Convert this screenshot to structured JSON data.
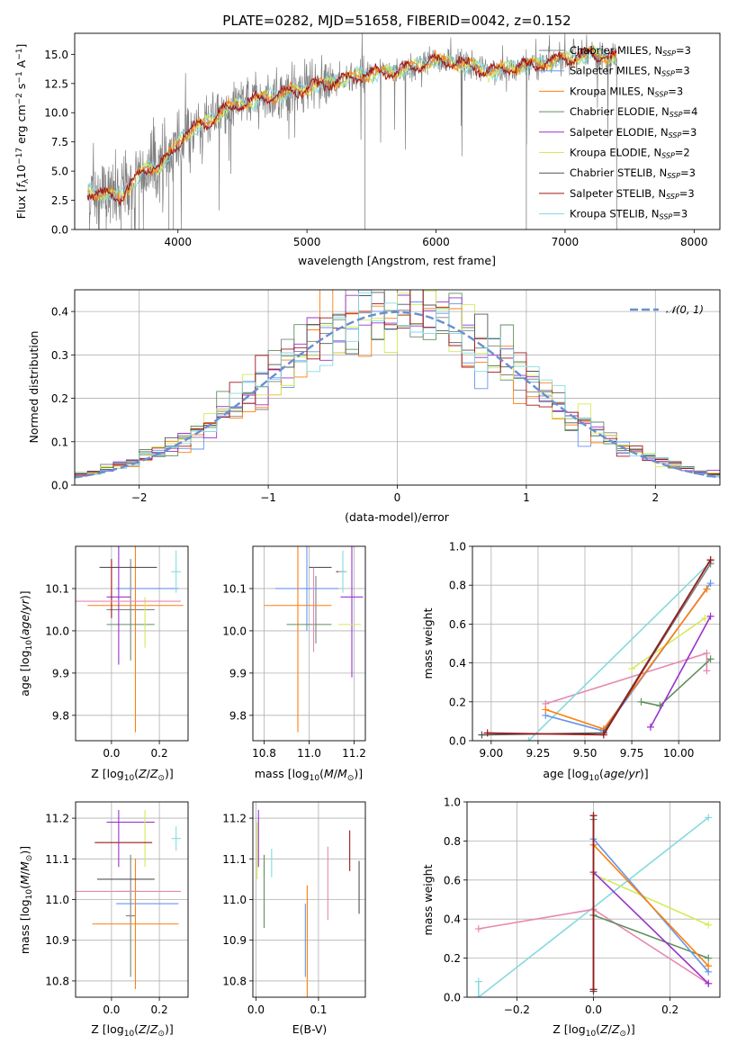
{
  "palette": {
    "Chabrier MILES": "#808080",
    "Salpeter MILES": "#6495ed",
    "Kroupa MILES": "#ff7f0e",
    "Chabrier ELODIE": "#5f8f5f",
    "Salpeter ELODIE": "#9932cc",
    "Kroupa ELODIE": "#d4ea58",
    "Chabrier STELIB": "#555555",
    "Salpeter STELIB": "#a01818",
    "Kroupa STELIB": "#86dae0",
    "Pink": "#e688b0",
    "Gauss": "#6a8fd0"
  },
  "chart_data": [
    {
      "id": "spectrum",
      "type": "line",
      "title": "PLATE=0282, MJD=51658, FIBERID=0042, z=0.152",
      "xlabel": "wavelength [Angstrom, rest frame]",
      "ylabel_parts": [
        "Flux [",
        "f",
        "λ",
        "10",
        "−17",
        " erg cm",
        "−2",
        " s",
        "−1",
        " A",
        "−1",
        "]"
      ],
      "xlim": [
        3200,
        8200
      ],
      "ylim": [
        0,
        16.8
      ],
      "xticks": [
        4000,
        5000,
        6000,
        7000,
        8000
      ],
      "yticks": [
        0.0,
        2.5,
        5.0,
        7.5,
        10.0,
        12.5,
        15.0
      ],
      "continuum": {
        "x": [
          3300,
          3450,
          3550,
          3650,
          3750,
          3850,
          3950,
          4050,
          4200,
          4350,
          4500,
          4650,
          4800,
          5000,
          5200,
          5400,
          5600,
          5800,
          6000,
          6200,
          6400,
          6600,
          6800,
          7000,
          7200,
          7400
        ],
        "y": [
          3.2,
          3.0,
          2.8,
          4.0,
          5.2,
          5.5,
          6.5,
          8.2,
          9.0,
          10.2,
          10.8,
          11.2,
          11.6,
          12.1,
          12.6,
          13.2,
          13.4,
          13.8,
          14.5,
          14.2,
          13.5,
          13.9,
          14.2,
          14.6,
          15.0,
          14.7
        ]
      },
      "legend": [
        {
          "name": "Chabrier MILES",
          "nssp": "3"
        },
        {
          "name": "Salpeter MILES",
          "nssp": "3"
        },
        {
          "name": "Kroupa MILES",
          "nssp": "3"
        },
        {
          "name": "Chabrier ELODIE",
          "nssp": "4"
        },
        {
          "name": "Salpeter ELODIE",
          "nssp": "3"
        },
        {
          "name": "Kroupa ELODIE",
          "nssp": "2"
        },
        {
          "name": "Chabrier STELIB",
          "nssp": "3"
        },
        {
          "name": "Salpeter STELIB",
          "nssp": "3"
        },
        {
          "name": "Kroupa STELIB",
          "nssp": "3"
        }
      ],
      "legend_sub": "SSP",
      "legend_prefix": "N"
    },
    {
      "id": "residuals",
      "type": "line",
      "xlabel": "(data-model)/error",
      "ylabel": "Normed distribution",
      "xlim": [
        -2.5,
        2.5
      ],
      "ylim": [
        0,
        0.45
      ],
      "xticks": [
        -2,
        -1,
        0,
        1,
        2
      ],
      "yticks": [
        0.0,
        0.1,
        0.2,
        0.3,
        0.4
      ],
      "grid": true,
      "legend_label": "𝒩(0, 1)",
      "legend_placement": "top-right",
      "bin_width": 0.1
    },
    {
      "id": "age-vs-Z",
      "type": "scatter",
      "xlabel": "Z [log10(Z/Z⊙)]",
      "ylabel": "age  [log10(age/yr)]",
      "xlim": [
        -0.15,
        0.32
      ],
      "ylim": [
        9.74,
        10.2
      ],
      "xticks": [
        0.0,
        0.2
      ],
      "yticks": [
        9.8,
        9.9,
        10.0,
        10.1
      ],
      "grid": true,
      "points": [
        {
          "s": "Chabrier MILES",
          "x": 0.08,
          "y": 10.05,
          "xe": 0.1,
          "ye": 0.12
        },
        {
          "s": "Salpeter MILES",
          "x": 0.15,
          "y": 10.1,
          "xe": 0.13,
          "ye": 0.0
        },
        {
          "s": "Kroupa MILES",
          "x": 0.1,
          "y": 10.06,
          "xe": 0.2,
          "ye": 0.3
        },
        {
          "s": "Chabrier ELODIE",
          "x": 0.08,
          "y": 10.015,
          "xe": 0.1,
          "ye": 0.0
        },
        {
          "s": "Salpeter ELODIE",
          "x": 0.03,
          "y": 10.08,
          "xe": 0.05,
          "ye": 0.16
        },
        {
          "s": "Kroupa ELODIE",
          "x": 0.14,
          "y": 10.02,
          "xe": 0.0,
          "ye": 0.06
        },
        {
          "s": "Chabrier STELIB",
          "x": 0.07,
          "y": 10.15,
          "xe": 0.12,
          "ye": 0.0
        },
        {
          "s": "Salpeter STELIB",
          "x": 0.0,
          "y": 10.1,
          "xe": 0.0,
          "ye": 0.07
        },
        {
          "s": "Kroupa STELIB",
          "x": 0.27,
          "y": 10.14,
          "xe": 0.02,
          "ye": 0.05
        },
        {
          "s": "Pink",
          "x": 0.07,
          "y": 10.07,
          "xe": 0.22,
          "ye": 0.0
        }
      ]
    },
    {
      "id": "age-vs-mass",
      "type": "scatter",
      "xlabel": "mass [log10(M/M⊙)]",
      "xlim": [
        10.75,
        11.25
      ],
      "ylim": [
        9.74,
        10.2
      ],
      "xticks": [
        10.8,
        11.0,
        11.2
      ],
      "yticks": [
        9.8,
        9.9,
        10.0,
        10.1
      ],
      "grid": true,
      "points": [
        {
          "s": "Chabrier MILES",
          "x": 11.03,
          "y": 10.05,
          "xe": 0.0,
          "ye": 0.08
        },
        {
          "s": "Salpeter MILES",
          "x": 10.99,
          "y": 10.1,
          "xe": 0.14,
          "ye": 0.1
        },
        {
          "s": "Kroupa MILES",
          "x": 10.95,
          "y": 10.06,
          "xe": 0.15,
          "ye": 0.3
        },
        {
          "s": "Chabrier ELODIE",
          "x": 11.0,
          "y": 10.015,
          "xe": 0.1,
          "ye": 0.0
        },
        {
          "s": "Salpeter ELODIE",
          "x": 11.19,
          "y": 10.08,
          "xe": 0.05,
          "ye": 0.19
        },
        {
          "s": "Kroupa ELODIE",
          "x": 11.18,
          "y": 10.015,
          "xe": 0.05,
          "ye": 0.0
        },
        {
          "s": "Chabrier STELIB",
          "x": 11.05,
          "y": 10.15,
          "xe": 0.05,
          "ye": 0.0
        },
        {
          "s": "Salpeter STELIB",
          "x": 11.14,
          "y": 10.14,
          "xe": 0.02,
          "ye": 0.0
        },
        {
          "s": "Kroupa STELIB",
          "x": 11.15,
          "y": 10.14,
          "xe": 0.02,
          "ye": 0.05
        },
        {
          "s": "Pink",
          "x": 11.02,
          "y": 10.05,
          "xe": 0.0,
          "ye": 0.1
        }
      ]
    },
    {
      "id": "mw-vs-age",
      "type": "line",
      "xlabel": "age  [log10(age/yr)]",
      "ylabel": "mass weight",
      "xlim": [
        8.9,
        10.22
      ],
      "ylim": [
        0,
        1
      ],
      "xticks": [
        9.0,
        9.25,
        9.5,
        9.75,
        10.0
      ],
      "yticks": [
        0.0,
        0.2,
        0.4,
        0.6,
        0.8,
        1.0
      ],
      "grid": true,
      "series": [
        {
          "s": "Pink",
          "x": [
            9.29,
            10.15,
            10.15
          ],
          "y": [
            0.19,
            0.45,
            0.36
          ]
        },
        {
          "s": "Kroupa ELODIE",
          "x": [
            9.75,
            10.14
          ],
          "y": [
            0.37,
            0.63
          ]
        },
        {
          "s": "Chabrier ELODIE",
          "x": [
            9.8,
            9.9,
            10.17
          ],
          "y": [
            0.2,
            0.18,
            0.42
          ]
        },
        {
          "s": "Salpeter ELODIE",
          "x": [
            9.85,
            10.17
          ],
          "y": [
            0.07,
            0.64
          ]
        },
        {
          "s": "Kroupa STELIB",
          "x": [
            9.2,
            10.17
          ],
          "y": [
            0.0,
            0.92
          ]
        },
        {
          "s": "Salpeter MILES",
          "x": [
            9.29,
            9.6,
            10.17
          ],
          "y": [
            0.13,
            0.05,
            0.81
          ]
        },
        {
          "s": "Kroupa MILES",
          "x": [
            9.29,
            9.6,
            10.15
          ],
          "y": [
            0.16,
            0.06,
            0.78
          ]
        },
        {
          "s": "Chabrier MILES",
          "x": [
            9.6,
            10.17
          ],
          "y": [
            0.04,
            0.91
          ]
        },
        {
          "s": "Chabrier STELIB",
          "x": [
            8.95,
            9.6,
            10.17
          ],
          "y": [
            0.03,
            0.04,
            0.93
          ]
        },
        {
          "s": "Salpeter STELIB",
          "x": [
            8.98,
            9.6,
            10.17
          ],
          "y": [
            0.04,
            0.03,
            0.93
          ]
        }
      ]
    },
    {
      "id": "mass-vs-Z",
      "type": "scatter",
      "xlabel": "Z [log10(Z/Z⊙)]",
      "ylabel": "mass [log10(M/M⊙)]",
      "xlim": [
        -0.15,
        0.32
      ],
      "ylim": [
        10.76,
        11.24
      ],
      "xticks": [
        0.0,
        0.2
      ],
      "yticks": [
        10.8,
        10.9,
        11.0,
        11.1,
        11.2
      ],
      "grid": true,
      "points": [
        {
          "s": "Chabrier MILES",
          "x": 0.08,
          "y": 10.96,
          "xe": 0.02,
          "ye": 0.15
        },
        {
          "s": "Salpeter MILES",
          "x": 0.15,
          "y": 10.99,
          "xe": 0.13,
          "ye": 0.0
        },
        {
          "s": "Kroupa MILES",
          "x": 0.1,
          "y": 10.94,
          "xe": 0.18,
          "ye": 0.16
        },
        {
          "s": "Chabrier ELODIE",
          "x": 0.07,
          "y": 11.02,
          "xe": 0.05,
          "ye": 0.0
        },
        {
          "s": "Salpeter ELODIE",
          "x": 0.08,
          "y": 11.19,
          "xe": 0.1,
          "ye": 0.0
        },
        {
          "s": "Kroupa ELODIE",
          "x": 0.14,
          "y": 11.15,
          "xe": 0.0,
          "ye": 0.07
        },
        {
          "s": "Chabrier STELIB",
          "x": 0.06,
          "y": 11.05,
          "xe": 0.12,
          "ye": 0.0
        },
        {
          "s": "Salpeter STELIB",
          "x": 0.05,
          "y": 11.14,
          "xe": 0.12,
          "ye": 0.0
        },
        {
          "s": "Kroupa STELIB",
          "x": 0.27,
          "y": 11.15,
          "xe": 0.02,
          "ye": 0.03
        },
        {
          "s": "Pink",
          "x": 0.07,
          "y": 11.02,
          "xe": 0.22,
          "ye": 0.0
        },
        {
          "s": "Salpeter ELODIE",
          "x": 0.03,
          "y": 11.15,
          "xe": 0.0,
          "ye": 0.07
        }
      ]
    },
    {
      "id": "mass-vs-EBV",
      "type": "scatter",
      "xlabel": "E(B-V)",
      "xlim": [
        -0.005,
        0.175
      ],
      "ylim": [
        10.76,
        11.24
      ],
      "xticks": [
        0.0,
        0.1
      ],
      "yticks": [
        10.8,
        10.9,
        11.0,
        11.1,
        11.2
      ],
      "grid": true,
      "points": [
        {
          "s": "Kroupa ELODIE",
          "x": 0.002,
          "y": 11.12,
          "xe": 0.0,
          "ye": 0.07
        },
        {
          "s": "Salpeter ELODIE",
          "x": 0.004,
          "y": 11.15,
          "xe": 0.0,
          "ye": 0.07
        },
        {
          "s": "Chabrier ELODIE",
          "x": 0.013,
          "y": 11.02,
          "xe": 0.0,
          "ye": 0.09
        },
        {
          "s": "Kroupa STELIB",
          "x": 0.025,
          "y": 11.09,
          "xe": 0.0,
          "ye": 0.035
        },
        {
          "s": "Salpeter MILES",
          "x": 0.079,
          "y": 10.9,
          "xe": 0.0,
          "ye": 0.09
        },
        {
          "s": "Kroupa MILES",
          "x": 0.082,
          "y": 10.89,
          "xe": 0.0,
          "ye": 0.145
        },
        {
          "s": "Pink",
          "x": 0.115,
          "y": 11.04,
          "xe": 0.0,
          "ye": 0.09
        },
        {
          "s": "Salpeter STELIB",
          "x": 0.15,
          "y": 11.12,
          "xe": 0.0,
          "ye": 0.05
        },
        {
          "s": "Chabrier STELIB",
          "x": 0.165,
          "y": 11.03,
          "xe": 0.0,
          "ye": 0.065
        }
      ]
    },
    {
      "id": "mw-vs-Z",
      "type": "line",
      "xlabel": "Z [log10(Z/Z⊙)]",
      "ylabel": "mass weight",
      "xlim": [
        -0.33,
        0.33
      ],
      "ylim": [
        0,
        1
      ],
      "xticks": [
        -0.2,
        0.0,
        0.2
      ],
      "yticks": [
        0.0,
        0.2,
        0.4,
        0.6,
        0.8,
        1.0
      ],
      "grid": true,
      "series": [
        {
          "s": "Kroupa STELIB",
          "x": [
            -0.3,
            -0.3,
            0.3
          ],
          "y": [
            0.08,
            0.0,
            0.92
          ]
        },
        {
          "s": "Pink",
          "x": [
            -0.3,
            0.0,
            0.3
          ],
          "y": [
            0.35,
            0.45,
            0.07
          ]
        },
        {
          "s": "Kroupa ELODIE",
          "x": [
            0.0,
            0.3
          ],
          "y": [
            0.63,
            0.37
          ]
        },
        {
          "s": "Chabrier ELODIE",
          "x": [
            0.0,
            0.3
          ],
          "y": [
            0.42,
            0.2
          ]
        },
        {
          "s": "Salpeter ELODIE",
          "x": [
            0.0,
            0.3
          ],
          "y": [
            0.64,
            0.07
          ]
        },
        {
          "s": "Salpeter MILES",
          "x": [
            0.0,
            0.3
          ],
          "y": [
            0.81,
            0.13
          ]
        },
        {
          "s": "Kroupa MILES",
          "x": [
            0.0,
            0.3
          ],
          "y": [
            0.78,
            0.16
          ]
        },
        {
          "s": "Chabrier MILES",
          "x": [
            0.0,
            0.0
          ],
          "y": [
            0.04,
            0.91
          ]
        },
        {
          "s": "Chabrier STELIB",
          "x": [
            0.0,
            0.0
          ],
          "y": [
            0.03,
            0.93
          ]
        },
        {
          "s": "Salpeter STELIB",
          "x": [
            0.0,
            0.0
          ],
          "y": [
            0.04,
            0.93
          ]
        }
      ]
    }
  ]
}
